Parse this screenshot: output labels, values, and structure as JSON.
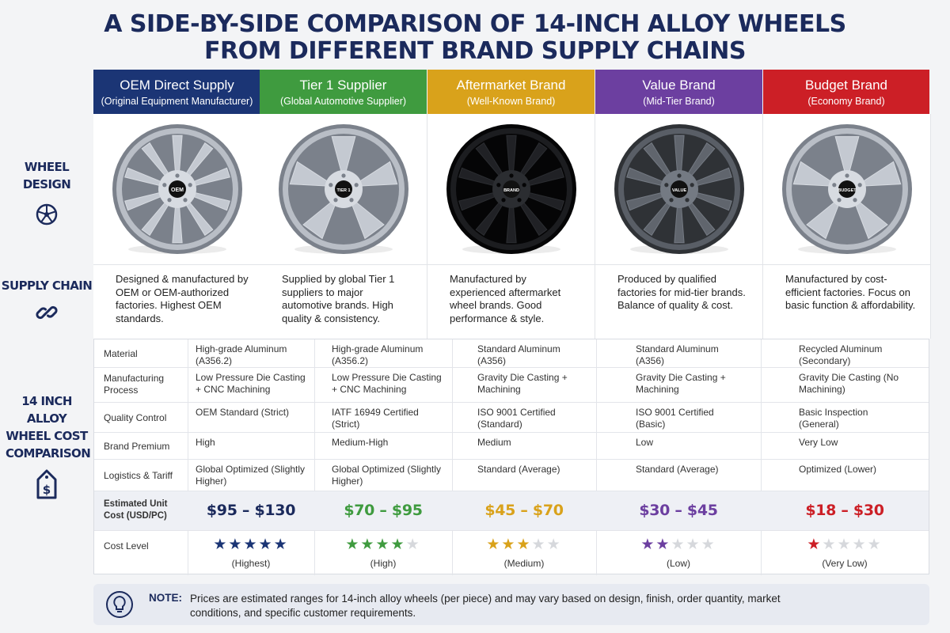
{
  "title": {
    "line1": "A SIDE-BY-SIDE COMPARISON OF 14-INCH ALLOY WHEELS",
    "line2": "FROM DIFFERENT BRAND SUPPLY CHAINS"
  },
  "left_labels": {
    "wheel_design": "WHEEL DESIGN",
    "supply_chain": "SUPPLY CHAIN",
    "cost_comparison": "14 INCH ALLOY WHEEL COST COMPARISON"
  },
  "icons": {
    "wheel_design": "wheel-icon",
    "supply_chain": "chain-link-icon",
    "cost_comparison": "price-tag-dollar-icon",
    "note": "lightbulb-icon",
    "rating": "star-icon"
  },
  "columns": [
    {
      "name": "OEM Direct Supply",
      "sub": "(Original Equipment Manufacturer)",
      "color": "#1b3575",
      "hub": "OEM",
      "finish": "silver",
      "supply": "Designed & manufactured by OEM or OEM-authorized factories. Highest OEM standards.",
      "cost": "$95 – $130",
      "cost_color": "#1b2a5c",
      "stars": 5,
      "star_color": "#1b3575",
      "level": "(Highest)"
    },
    {
      "name": "Tier 1 Supplier",
      "sub": "(Global Automotive Supplier)",
      "color": "#3f9b3f",
      "hub": "TIER 1",
      "finish": "silver",
      "supply": "Supplied by global Tier 1 suppliers to major automotive brands. High quality & consistency.",
      "cost": "$70 – $95",
      "cost_color": "#3f9b3f",
      "stars": 4,
      "star_color": "#3f9b3f",
      "level": "(High)"
    },
    {
      "name": "Aftermarket Brand",
      "sub": "(Well-Known Brand)",
      "color": "#d9a21b",
      "hub": "BRAND",
      "finish": "black",
      "supply": "Manufactured by experienced aftermarket wheel brands. Good performance & style.",
      "cost": "$45 – $70",
      "cost_color": "#d9a21b",
      "stars": 3,
      "star_color": "#d9a21b",
      "level": "(Medium)"
    },
    {
      "name": "Value Brand",
      "sub": "(Mid-Tier Brand)",
      "color": "#6c3fa0",
      "hub": "VALUE",
      "finish": "gunmetal",
      "supply": "Produced by qualified factories for mid-tier brands. Balance of quality & cost.",
      "cost": "$30 – $45",
      "cost_color": "#6c3fa0",
      "stars": 2,
      "star_color": "#6c3fa0",
      "level": "(Low)"
    },
    {
      "name": "Budget Brand",
      "sub": "(Economy Brand)",
      "color": "#cc1f26",
      "hub": "BUDGET",
      "finish": "silver",
      "supply": "Manufactured by cost-efficient factories. Focus on basic function & affordability.",
      "cost": "$18 – $30",
      "cost_color": "#cc1f26",
      "stars": 1,
      "star_color": "#cc1f26",
      "level": "(Very Low)"
    }
  ],
  "table": {
    "rows": [
      {
        "label": "Material",
        "values": [
          "High-grade Aluminum (A356.2)",
          "High-grade Aluminum (A356.2)",
          "Standard Aluminum (A356)",
          "Standard Aluminum (A356)",
          "Recycled Aluminum (Secondary)"
        ]
      },
      {
        "label": "Manufacturing Process",
        "values": [
          "Low Pressure Die Casting + CNC Machining",
          "Low Pressure Die Casting + CNC Machining",
          "Gravity Die Casting + Machining",
          "Gravity Die Casting + Machining",
          "Gravity Die Casting (No Machining)"
        ]
      },
      {
        "label": "Quality Control",
        "values": [
          "OEM Standard (Strict)",
          "IATF 16949 Certified (Strict)",
          "ISO 9001 Certified (Standard)",
          "ISO 9001 Certified (Basic)",
          "Basic Inspection (General)"
        ]
      },
      {
        "label": "Brand Premium",
        "values": [
          "High",
          "Medium-High",
          "Medium",
          "Low",
          "Very Low"
        ]
      },
      {
        "label": "Logistics & Tariff",
        "values": [
          "Global Optimized (Slightly Higher)",
          "Global Optimized (Slightly Higher)",
          "Standard (Average)",
          "Standard (Average)",
          "Optimized (Lower)"
        ]
      }
    ],
    "cost_label": "Estimated Unit Cost (USD/PC)",
    "level_label": "Cost Level"
  },
  "note": {
    "label": "NOTE:",
    "text": "Prices are estimated ranges for 14-inch alloy wheels (per piece) and may vary based on design, finish, order quantity, market conditions, and specific customer requirements."
  }
}
